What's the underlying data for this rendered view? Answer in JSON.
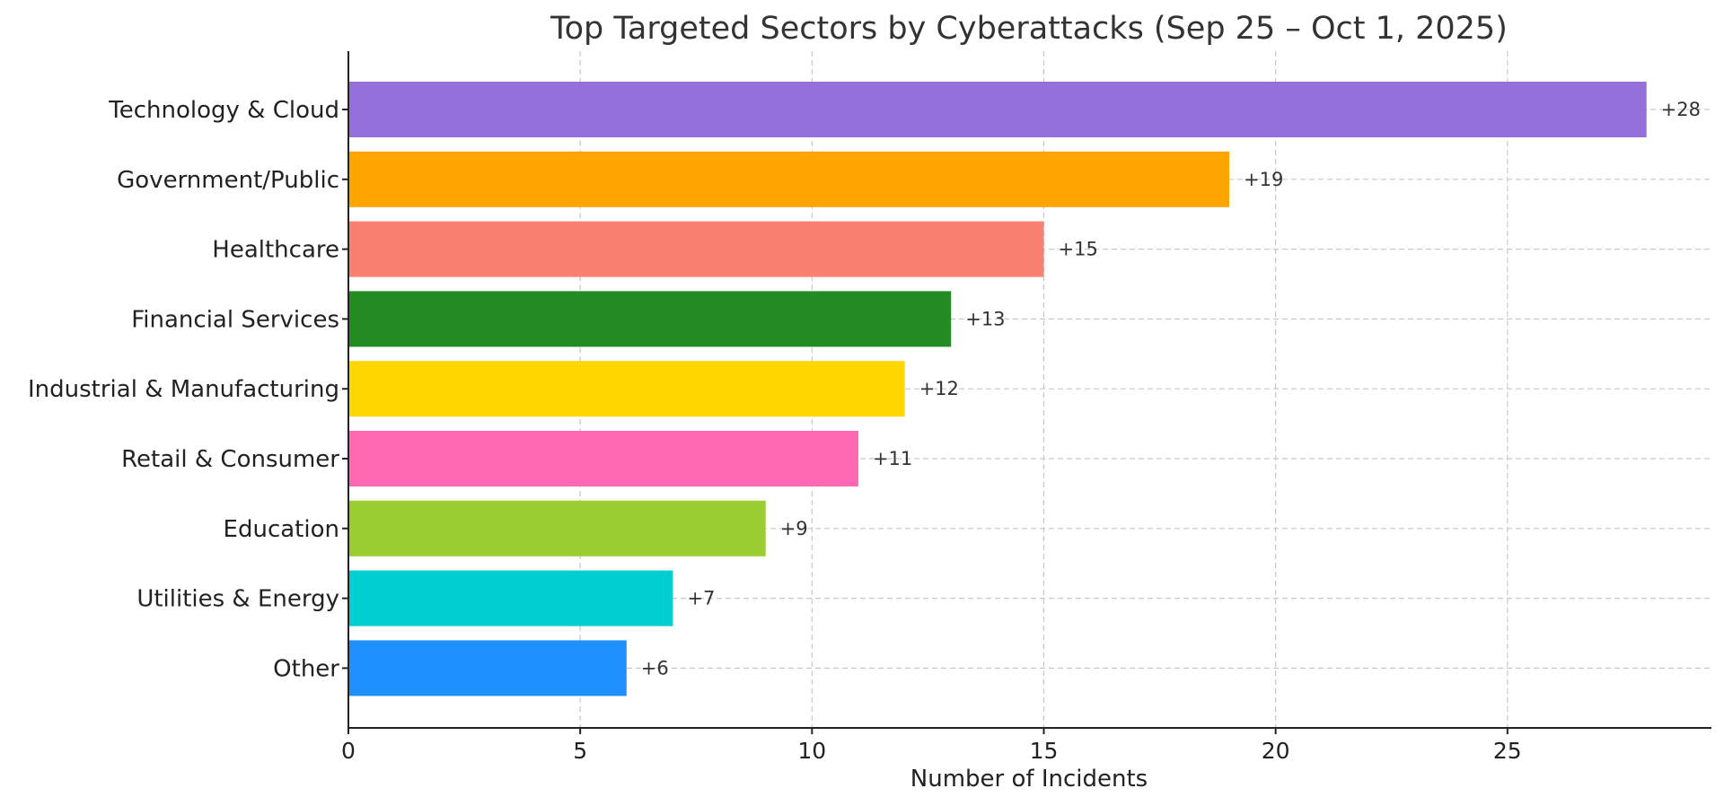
{
  "chart_data": {
    "type": "bar",
    "orientation": "horizontal",
    "title": "Top Targeted Sectors by Cyberattacks (Sep 25 – Oct 1, 2025)",
    "xlabel": "Number of Incidents",
    "ylabel": "",
    "xlim": [
      0,
      29.4
    ],
    "xticks": [
      0,
      5,
      10,
      15,
      20,
      25
    ],
    "grid": true,
    "categories": [
      "Technology & Cloud",
      "Government/Public",
      "Healthcare",
      "Financial Services",
      "Industrial & Manufacturing",
      "Retail & Consumer",
      "Education",
      "Utilities & Energy",
      "Other"
    ],
    "values": [
      28,
      19,
      15,
      13,
      12,
      11,
      9,
      7,
      6
    ],
    "data_labels": [
      "+28",
      "+19",
      "+15",
      "+13",
      "+12",
      "+11",
      "+9",
      "+7",
      "+6"
    ],
    "colors": [
      "#9370DB",
      "#FFA500",
      "#FA8072",
      "#228B22",
      "#FFD700",
      "#FF69B4",
      "#9ACD32",
      "#00CED1",
      "#1E90FF"
    ]
  }
}
